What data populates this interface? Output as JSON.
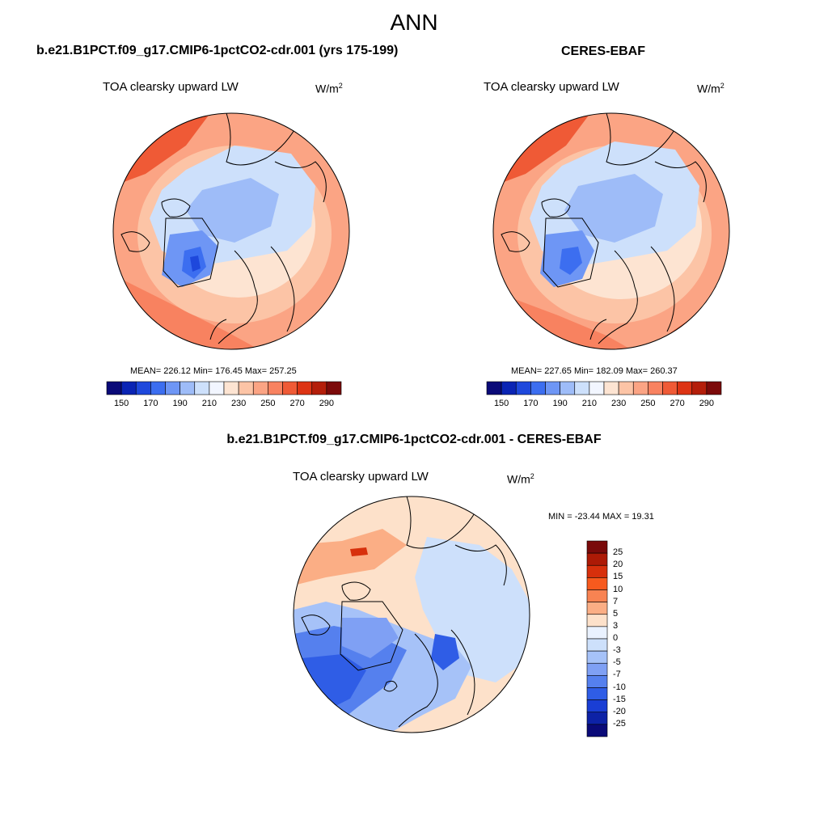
{
  "page": {
    "title": "ANN"
  },
  "palettes": {
    "absolute": [
      "#0a0a78",
      "#0a24b4",
      "#1e48dc",
      "#3c6ef0",
      "#6e96f5",
      "#9ebcf8",
      "#cde0fb",
      "#f2f6ff",
      "#fde4d2",
      "#fcc4a6",
      "#fba484",
      "#f88260",
      "#ef5a36",
      "#dd3414",
      "#b41e0a",
      "#7c0a0a"
    ],
    "difference": [
      "#7a0a0a",
      "#ad1a06",
      "#d7300c",
      "#f75a1e",
      "#f88352",
      "#fbae85",
      "#fde1ca",
      "#eaf2ff",
      "#cde0fb",
      "#a6c2f8",
      "#7fa0f4",
      "#5580ee",
      "#2f5de6",
      "#1a3ed4",
      "#0d22a6",
      "#0a0a78"
    ]
  },
  "panels": {
    "model": {
      "title": "b.e21.B1PCT.f09_g17.CMIP6-1pctCO2-cdr.001 (yrs 175-199)",
      "variable": "TOA clearsky upward LW",
      "units_base": "W/m",
      "units_exp": "2",
      "stats": "MEAN= 226.12  Min= 176.45  Max= 257.25",
      "colorbar_ticks": [
        "150",
        "170",
        "190",
        "210",
        "230",
        "250",
        "270",
        "290"
      ]
    },
    "obs": {
      "title": "CERES-EBAF",
      "variable": "TOA clearsky upward LW",
      "units_base": "W/m",
      "units_exp": "2",
      "stats": "MEAN= 227.65  Min= 182.09  Max= 260.37",
      "colorbar_ticks": [
        "150",
        "170",
        "190",
        "210",
        "230",
        "250",
        "270",
        "290"
      ]
    },
    "diff": {
      "title": "b.e21.B1PCT.f09_g17.CMIP6-1pctCO2-cdr.001 - CERES-EBAF",
      "variable": "TOA clearsky upward LW",
      "units_base": "W/m",
      "units_exp": "2",
      "stats": "MIN = -23.44 MAX =  19.31",
      "colorbar_ticks": [
        "25",
        "20",
        "15",
        "10",
        "7",
        "5",
        "3",
        "0",
        "-3",
        "-5",
        "-7",
        "-10",
        "-15",
        "-20",
        "-25"
      ]
    }
  }
}
